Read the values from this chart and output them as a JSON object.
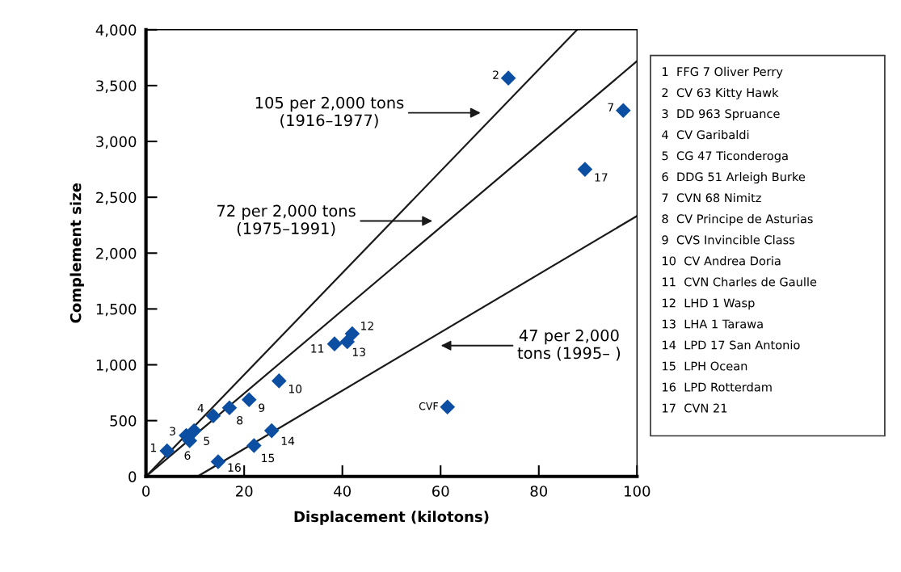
{
  "chart_data": {
    "type": "scatter",
    "xlabel": "Displacement (kilotons)",
    "ylabel": "Complement size",
    "xlim": [
      0,
      100
    ],
    "xticks": [
      0,
      20,
      40,
      60,
      80,
      100
    ],
    "ylim": [
      0,
      4000
    ],
    "yticks": [
      0,
      {
        "value": 500,
        "label": "500"
      },
      {
        "value": 1000,
        "label": "1,000"
      },
      {
        "value": 1500,
        "label": "1,500"
      },
      {
        "value": 2000,
        "label": "2,000"
      },
      {
        "value": 2500,
        "label": "2,500"
      },
      {
        "value": 3000,
        "label": "3,000"
      },
      {
        "value": 3500,
        "label": "3,500"
      },
      {
        "value": 4000,
        "label": "4,000"
      }
    ],
    "grid": false,
    "series": [
      {
        "marker": "diamond",
        "color": "#0b4ea2",
        "x": [
          4.3,
          73.8,
          8.2,
          13.7,
          9.8,
          8.9,
          97.2,
          17.0,
          21.0,
          27.1,
          38.4,
          42.0,
          41.0,
          25.6,
          22.0,
          14.7,
          89.4,
          61.4
        ],
        "values": [
          229,
          3567,
          367,
          543,
          410,
          320,
          3277,
          615,
          687,
          856,
          1187,
          1279,
          1206,
          410,
          277,
          132,
          2750,
          622
        ]
      },
      {
        "type": "line",
        "color": "#1a1a1a",
        "x": [
          0,
          87.8
        ],
        "values": [
          0,
          4000
        ]
      },
      {
        "type": "line",
        "color": "#1a1a1a",
        "x": [
          0,
          100
        ],
        "values": [
          0,
          3719
        ]
      },
      {
        "type": "line",
        "color": "#1a1a1a",
        "x": [
          10.5,
          100
        ],
        "values": [
          0,
          2333
        ]
      }
    ],
    "annotations": [
      "105 per 2,000 tons\n(1916–1977)",
      "72 per 2,000 tons\n(1975–1991)",
      "47 per 2,000\ntons (1995– )",
      {
        "text": "1",
        "x": 4.3,
        "y": 229
      },
      {
        "text": "2",
        "x": 73.8,
        "y": 3567
      },
      {
        "text": "3",
        "x": 8.2,
        "y": 367
      },
      {
        "text": "4",
        "x": 13.7,
        "y": 543
      },
      {
        "text": "5",
        "x": 9.8,
        "y": 410
      },
      {
        "text": "6",
        "x": 8.9,
        "y": 320
      },
      {
        "text": "7",
        "x": 97.2,
        "y": 3277
      },
      {
        "text": "8",
        "x": 17.0,
        "y": 615
      },
      {
        "text": "9",
        "x": 21.0,
        "y": 687
      },
      {
        "text": "10",
        "x": 27.1,
        "y": 856
      },
      {
        "text": "11",
        "x": 38.4,
        "y": 1187
      },
      {
        "text": "12",
        "x": 42.0,
        "y": 1279
      },
      {
        "text": "13",
        "x": 41.0,
        "y": 1206
      },
      {
        "text": "14",
        "x": 25.6,
        "y": 410
      },
      {
        "text": "15",
        "x": 22.0,
        "y": 277
      },
      {
        "text": "16",
        "x": 14.7,
        "y": 132
      },
      {
        "text": "17",
        "x": 89.4,
        "y": 2750
      },
      {
        "text": "CVF",
        "x": 61.4,
        "y": 622
      },
      "1  FFG 7 Oliver Perry",
      "2  CV 63 Kitty Hawk",
      "3  DD 963 Spruance",
      "4  CV Garibaldi",
      "5  CG 47 Ticonderoga",
      "6  DDG 51 Arleigh Burke",
      "7  CVN 68 Nimitz",
      "8  CV Principe de Asturias",
      "9  CVS Invincible Class",
      "10  CV Andrea Doria",
      "11  CVN Charles de Gaulle",
      "12  LHD 1 Wasp",
      "13  LHA 1 Tarawa",
      "14  LPD 17 San Antonio",
      "15  LPH Ocean",
      "16  LPD Rotterdam",
      "17  CVN 21"
    ]
  }
}
